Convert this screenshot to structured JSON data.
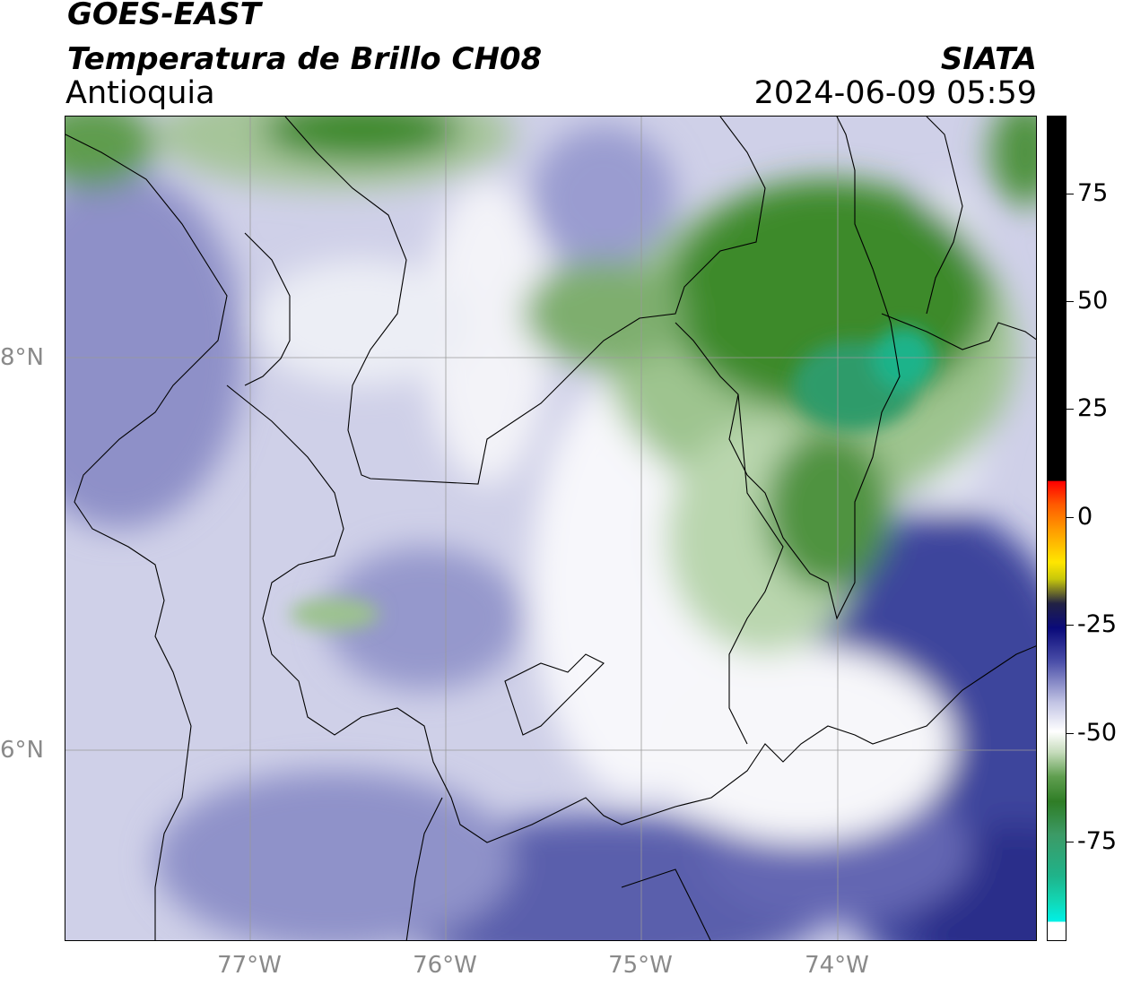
{
  "header": {
    "satellite": "GOES-EAST",
    "product": "Temperatura de Brillo CH08",
    "region": "Antioquia",
    "agency": "SIATA",
    "timestamp": "2024-06-09 05:59"
  },
  "map": {
    "lat_ticks": [
      "8°N",
      "6°N"
    ],
    "lon_ticks": [
      "77°W",
      "76°W",
      "75°W",
      "74°W"
    ]
  },
  "colorbar": {
    "ticks": [
      "75",
      "50",
      "25",
      "0",
      "-25",
      "-50",
      "-75"
    ],
    "colors": {
      "high": "#000000",
      "red": "#ff0000",
      "orange": "#ff8c00",
      "yellow": "#ffff00",
      "dark_blue": "#0a0a7a",
      "white": "#ffffff",
      "green": "#3d8a2a",
      "teal": "#1fb38a",
      "cyan": "#00f0e6"
    }
  }
}
